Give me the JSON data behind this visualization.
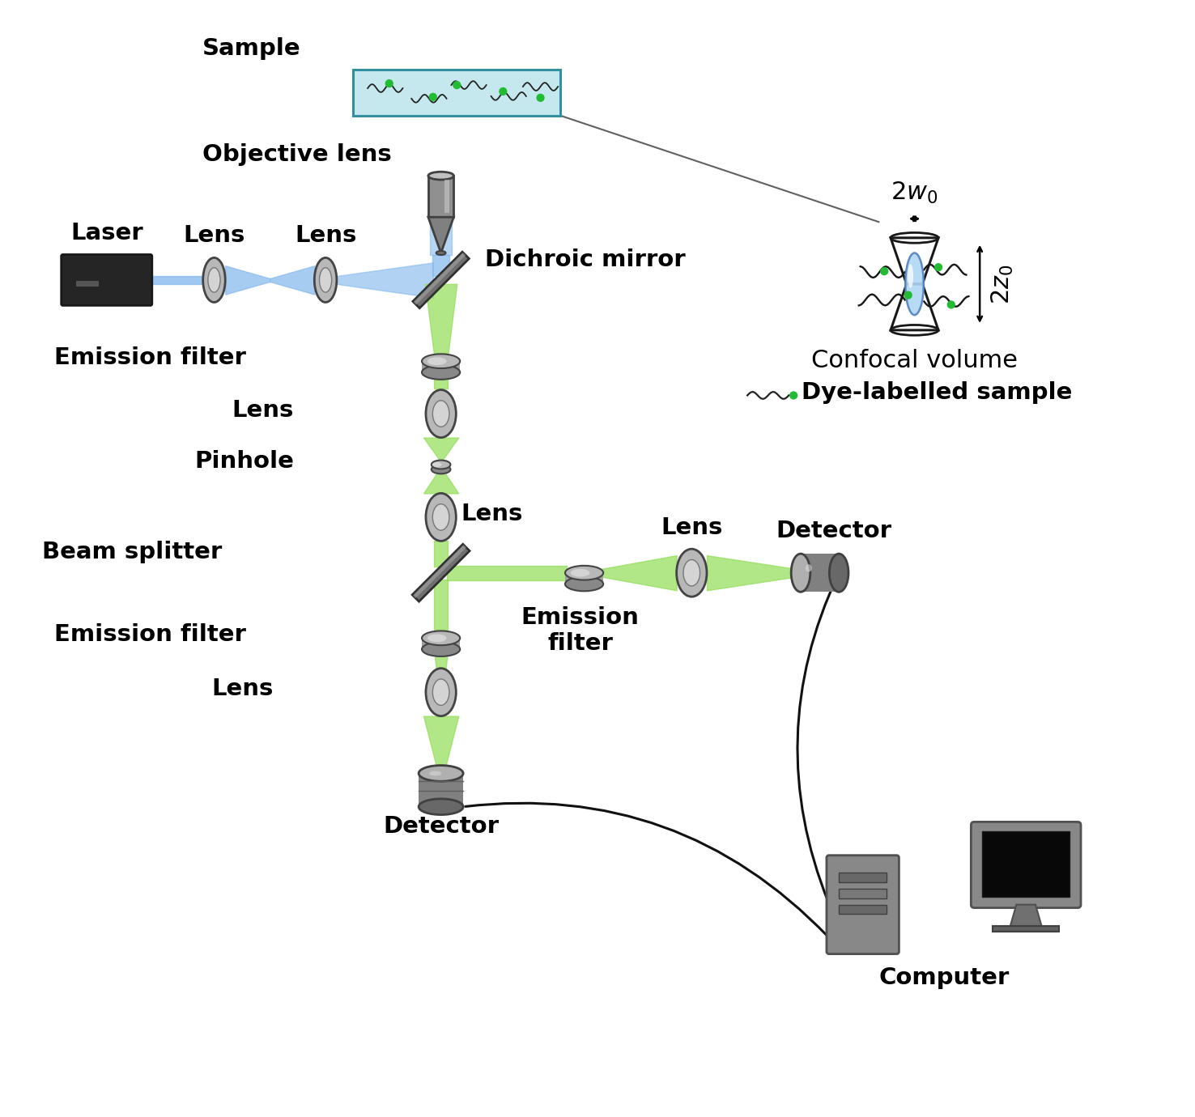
{
  "bg_color": "#ffffff",
  "laser_color_center": "#aaccff",
  "laser_color_edge": "#6699dd",
  "beam_green_center": "#ccffaa",
  "beam_green_edge": "#88cc44",
  "lens_face": "#b8b8b8",
  "lens_edge": "#444444",
  "lens_hl": "#e8e8e8",
  "mirror_face": "#707070",
  "mirror_edge": "#303030",
  "mirror_hl": "#aaaaaa",
  "sample_fill": "#c5e8ee",
  "sample_edge": "#3090a0",
  "green_dot": "#22bb33",
  "detector_face": "#909090",
  "detector_edge": "#404040",
  "computer_face": "#888888",
  "monitor_screen": "#080808",
  "wire_color": "#111111",
  "labels": {
    "laser": "Laser",
    "lens": "Lens",
    "objective": "Objective lens",
    "sample": "Sample",
    "dichroic": "Dichroic mirror",
    "ef1": "Emission filter",
    "ef2": "Emission filter",
    "ef3": "Emission\nfilter",
    "pinhole": "Pinhole",
    "beam_splitter": "Beam splitter",
    "det_bottom": "Detector",
    "det_right": "Detector",
    "lens_right": "Lens",
    "confocal": "Confocal volume",
    "dye": "Dye-labelled sample",
    "computer": "Computer",
    "w0": "$2w_0$",
    "z0": "$2z_0$"
  },
  "font_size": 21
}
